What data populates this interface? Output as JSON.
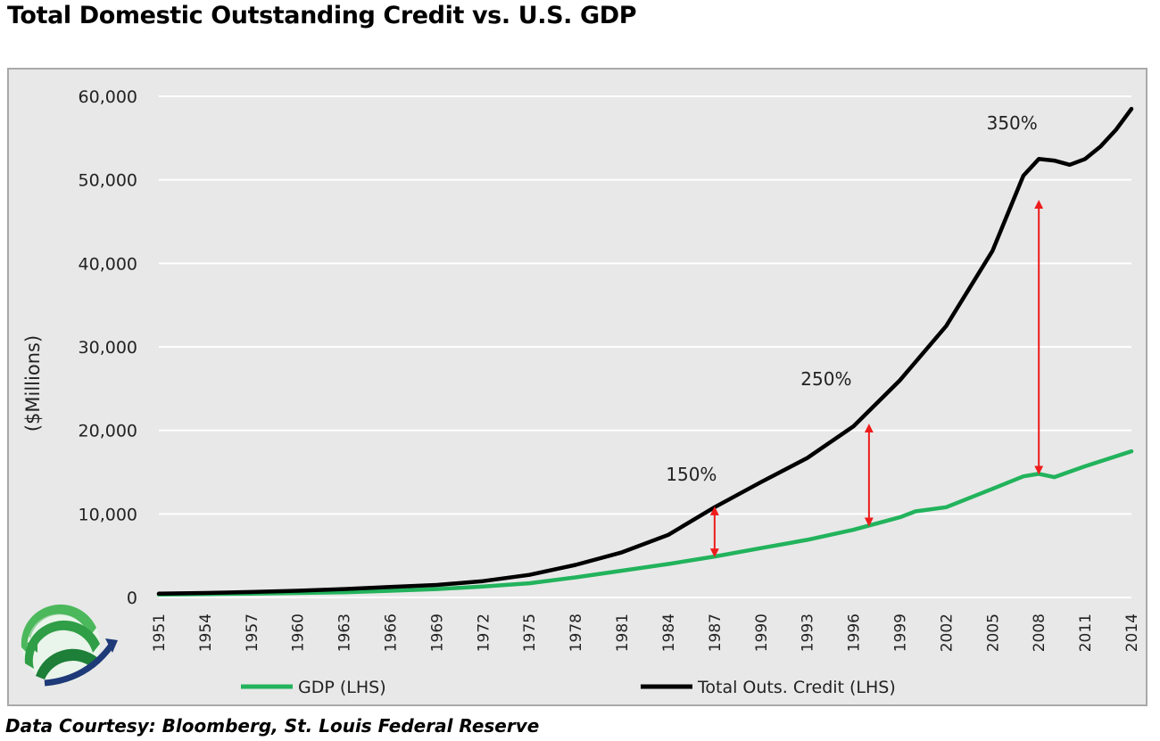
{
  "page": {
    "title": "Total Domestic Outstanding Credit vs. U.S. GDP",
    "footer": "Data Courtesy: Bloomberg, St. Louis Federal Reserve"
  },
  "colors": {
    "gdp": "#22b35c",
    "credit": "#000000",
    "arrow": "#ee1c1c",
    "plot_bg": "#e8e8e8",
    "grid": "#ffffff"
  },
  "chart_data": {
    "type": "line",
    "title": "Total Domestic Outstanding Credit vs. U.S. GDP",
    "xlabel": "",
    "ylabel": "($Millions)",
    "ylim": [
      0,
      60000
    ],
    "yticks": [
      0,
      10000,
      20000,
      30000,
      40000,
      50000,
      60000
    ],
    "ytick_labels": [
      "0",
      "10,000",
      "20,000",
      "30,000",
      "40,000",
      "50,000",
      "60,000"
    ],
    "xlim": [
      1951,
      2014
    ],
    "xtick_labels": [
      "1951",
      "1954",
      "1957",
      "1960",
      "1963",
      "1966",
      "1969",
      "1972",
      "1975",
      "1978",
      "1981",
      "1984",
      "1987",
      "1990",
      "1993",
      "1996",
      "1999",
      "2002",
      "2005",
      "2008",
      "2011",
      "2014"
    ],
    "grid": "horizontal",
    "legend_position": "bottom",
    "series": [
      {
        "name": "GDP (LHS)",
        "x": [
          1951,
          1954,
          1957,
          1960,
          1963,
          1966,
          1969,
          1972,
          1975,
          1978,
          1981,
          1984,
          1987,
          1990,
          1993,
          1996,
          1999,
          2000,
          2002,
          2005,
          2007,
          2008,
          2009,
          2011,
          2014
        ],
        "y": [
          340,
          390,
          460,
          530,
          620,
          800,
          1000,
          1300,
          1700,
          2400,
          3200,
          4000,
          4900,
          5900,
          6900,
          8100,
          9600,
          10300,
          10800,
          13000,
          14500,
          14800,
          14400,
          15700,
          17500
        ]
      },
      {
        "name": "Total Outs. Credit (LHS)",
        "x": [
          1951,
          1954,
          1957,
          1960,
          1963,
          1966,
          1969,
          1972,
          1975,
          1978,
          1981,
          1984,
          1987,
          1990,
          1993,
          1996,
          1999,
          2002,
          2005,
          2007,
          2008,
          2009,
          2010,
          2011,
          2012,
          2013,
          2014
        ],
        "y": [
          450,
          530,
          650,
          800,
          1000,
          1250,
          1500,
          1950,
          2700,
          3900,
          5400,
          7500,
          10800,
          13800,
          16700,
          20500,
          26000,
          32500,
          41500,
          50500,
          52500,
          52300,
          51800,
          52500,
          54000,
          56000,
          58500
        ]
      }
    ],
    "annotations": [
      {
        "label": "150%",
        "x": 1987,
        "y_low": 4900,
        "y_high": 10800
      },
      {
        "label": "250%",
        "x": 1997,
        "y_low": 8600,
        "y_high": 20700
      },
      {
        "label": "350%",
        "x": 2008,
        "y_low": 14800,
        "y_high": 47500
      }
    ]
  }
}
